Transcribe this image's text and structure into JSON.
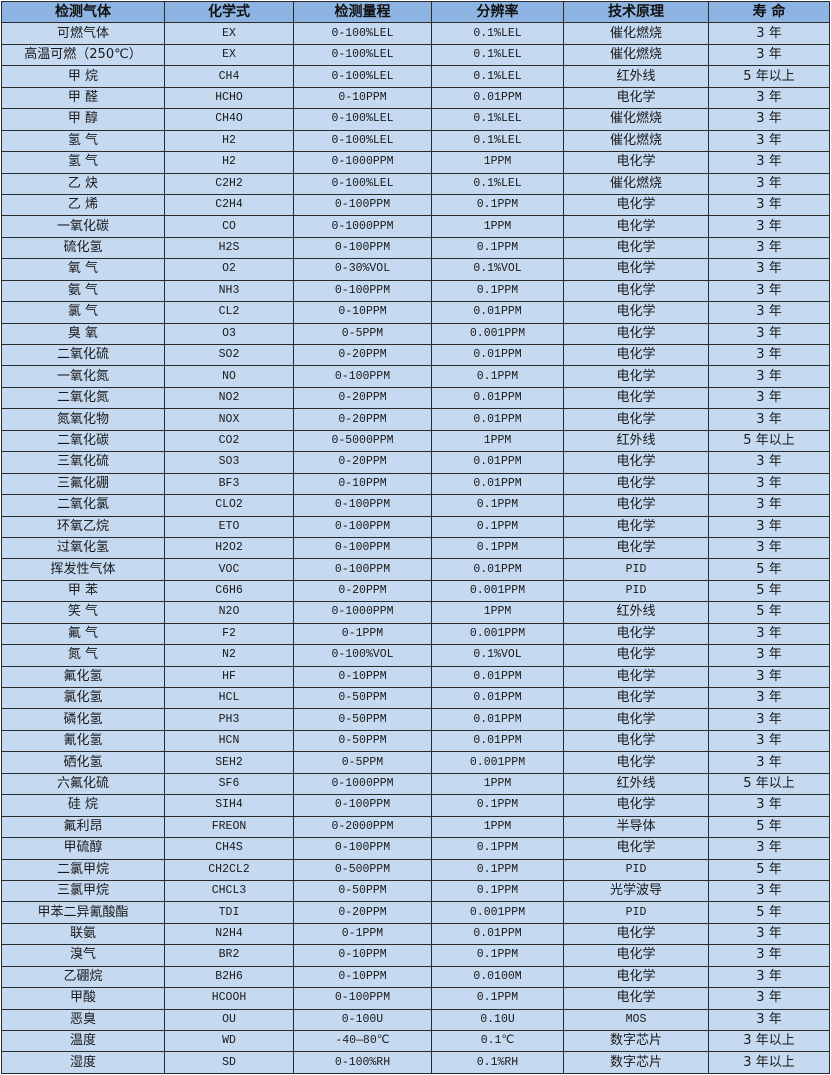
{
  "colors": {
    "header_bg": "#8DB4E2",
    "row_bg": "#C5D9F1",
    "border": "#2B2B2B"
  },
  "headers": [
    "检测气体",
    "化学式",
    "检测量程",
    "分辨率",
    "技术原理",
    "寿 命"
  ],
  "rows": [
    [
      "可燃气体",
      "EX",
      "0-100%LEL",
      "0.1%LEL",
      "催化燃烧",
      "3 年"
    ],
    [
      "高温可燃（250℃）",
      "EX",
      "0-100%LEL",
      "0.1%LEL",
      "催化燃烧",
      "3 年"
    ],
    [
      "甲 烷",
      "CH4",
      "0-100%LEL",
      "0.1%LEL",
      "红外线",
      "5 年以上"
    ],
    [
      "甲 醛",
      "HCHO",
      "0-10PPM",
      "0.01PPM",
      "电化学",
      "3 年"
    ],
    [
      "甲 醇",
      "CH4O",
      "0-100%LEL",
      "0.1%LEL",
      "催化燃烧",
      "3 年"
    ],
    [
      "氢 气",
      "H2",
      "0-100%LEL",
      "0.1%LEL",
      "催化燃烧",
      "3 年"
    ],
    [
      "氢 气",
      "H2",
      "0-1000PPM",
      "1PPM",
      "电化学",
      "3 年"
    ],
    [
      "乙 炔",
      "C2H2",
      "0-100%LEL",
      "0.1%LEL",
      "催化燃烧",
      "3 年"
    ],
    [
      "乙 烯",
      "C2H4",
      "0-100PPM",
      "0.1PPM",
      "电化学",
      "3 年"
    ],
    [
      "一氧化碳",
      "CO",
      "0-1000PPM",
      "1PPM",
      "电化学",
      "3 年"
    ],
    [
      "硫化氢",
      "H2S",
      "0-100PPM",
      "0.1PPM",
      "电化学",
      "3 年"
    ],
    [
      "氧 气",
      "O2",
      "0-30%VOL",
      "0.1%VOL",
      "电化学",
      "3 年"
    ],
    [
      "氨 气",
      "NH3",
      "0-100PPM",
      "0.1PPM",
      "电化学",
      "3 年"
    ],
    [
      "氯 气",
      "CL2",
      "0-10PPM",
      "0.01PPM",
      "电化学",
      "3 年"
    ],
    [
      "臭 氧",
      "O3",
      "0-5PPM",
      "0.001PPM",
      "电化学",
      "3 年"
    ],
    [
      "二氧化硫",
      "SO2",
      "0-20PPM",
      "0.01PPM",
      "电化学",
      "3 年"
    ],
    [
      "一氧化氮",
      "NO",
      "0-100PPM",
      "0.1PPM",
      "电化学",
      "3 年"
    ],
    [
      "二氧化氮",
      "NO2",
      "0-20PPM",
      "0.01PPM",
      "电化学",
      "3 年"
    ],
    [
      "氮氧化物",
      "NOX",
      "0-20PPM",
      "0.01PPM",
      "电化学",
      "3 年"
    ],
    [
      "二氧化碳",
      "CO2",
      "0-5000PPM",
      "1PPM",
      "红外线",
      "5 年以上"
    ],
    [
      "三氧化硫",
      "SO3",
      "0-20PPM",
      "0.01PPM",
      "电化学",
      "3 年"
    ],
    [
      "三氟化硼",
      "BF3",
      "0-10PPM",
      "0.01PPM",
      "电化学",
      "3 年"
    ],
    [
      "二氧化氯",
      "CLO2",
      "0-100PPM",
      "0.1PPM",
      "电化学",
      "3 年"
    ],
    [
      "环氧乙烷",
      "ETO",
      "0-100PPM",
      "0.1PPM",
      "电化学",
      "3 年"
    ],
    [
      "过氧化氢",
      "H2O2",
      "0-100PPM",
      "0.1PPM",
      "电化学",
      "3 年"
    ],
    [
      "挥发性气体",
      "VOC",
      "0-100PPM",
      "0.01PPM",
      "PID",
      "5 年"
    ],
    [
      "甲 苯",
      "C6H6",
      "0-20PPM",
      "0.001PPM",
      "PID",
      "5 年"
    ],
    [
      "笑 气",
      "N2O",
      "0-1000PPM",
      "1PPM",
      "红外线",
      "5 年"
    ],
    [
      "氟 气",
      "F2",
      "0-1PPM",
      "0.001PPM",
      "电化学",
      "3 年"
    ],
    [
      "氮 气",
      "N2",
      "0-100%VOL",
      "0.1%VOL",
      "电化学",
      "3 年"
    ],
    [
      "氟化氢",
      "HF",
      "0-10PPM",
      "0.01PPM",
      "电化学",
      "3 年"
    ],
    [
      "氯化氢",
      "HCL",
      "0-50PPM",
      "0.01PPM",
      "电化学",
      "3 年"
    ],
    [
      "磷化氢",
      "PH3",
      "0-50PPM",
      "0.01PPM",
      "电化学",
      "3 年"
    ],
    [
      "氰化氢",
      "HCN",
      "0-50PPM",
      "0.01PPM",
      "电化学",
      "3 年"
    ],
    [
      "硒化氢",
      "SEH2",
      "0-5PPM",
      "0.001PPM",
      "电化学",
      "3 年"
    ],
    [
      "六氟化硫",
      "SF6",
      "0-1000PPM",
      "1PPM",
      "红外线",
      "5 年以上"
    ],
    [
      "硅 烷",
      "SIH4",
      "0-100PPM",
      "0.1PPM",
      "电化学",
      "3 年"
    ],
    [
      "氟利昂",
      "FREON",
      "0-2000PPM",
      "1PPM",
      "半导体",
      "5 年"
    ],
    [
      "甲硫醇",
      "CH4S",
      "0-100PPM",
      "0.1PPM",
      "电化学",
      "3 年"
    ],
    [
      "二氯甲烷",
      "CH2CL2",
      "0-500PPM",
      "0.1PPM",
      "PID",
      "5 年"
    ],
    [
      "三氯甲烷",
      "CHCL3",
      "0-50PPM",
      "0.1PPM",
      "光学波导",
      "3 年"
    ],
    [
      "甲苯二异氰酸酯",
      "TDI",
      "0-20PPM",
      "0.001PPM",
      "PID",
      "5 年"
    ],
    [
      "联氨",
      "N2H4",
      "0-1PPM",
      "0.01PPM",
      "电化学",
      "3 年"
    ],
    [
      "溴气",
      "BR2",
      "0-10PPM",
      "0.1PPM",
      "电化学",
      "3 年"
    ],
    [
      "乙硼烷",
      "B2H6",
      "0-10PPM",
      "0.0100M",
      "电化学",
      "3 年"
    ],
    [
      "甲酸",
      "HCOOH",
      "0-100PPM",
      "0.1PPM",
      "电化学",
      "3 年"
    ],
    [
      "恶臭",
      "OU",
      "0-100U",
      "0.10U",
      "MOS",
      "3 年"
    ],
    [
      "温度",
      "WD",
      "-40—80℃",
      "0.1℃",
      "数字芯片",
      "3 年以上"
    ],
    [
      "湿度",
      "SD",
      "0-100%RH",
      "0.1%RH",
      "数字芯片",
      "3 年以上"
    ]
  ]
}
